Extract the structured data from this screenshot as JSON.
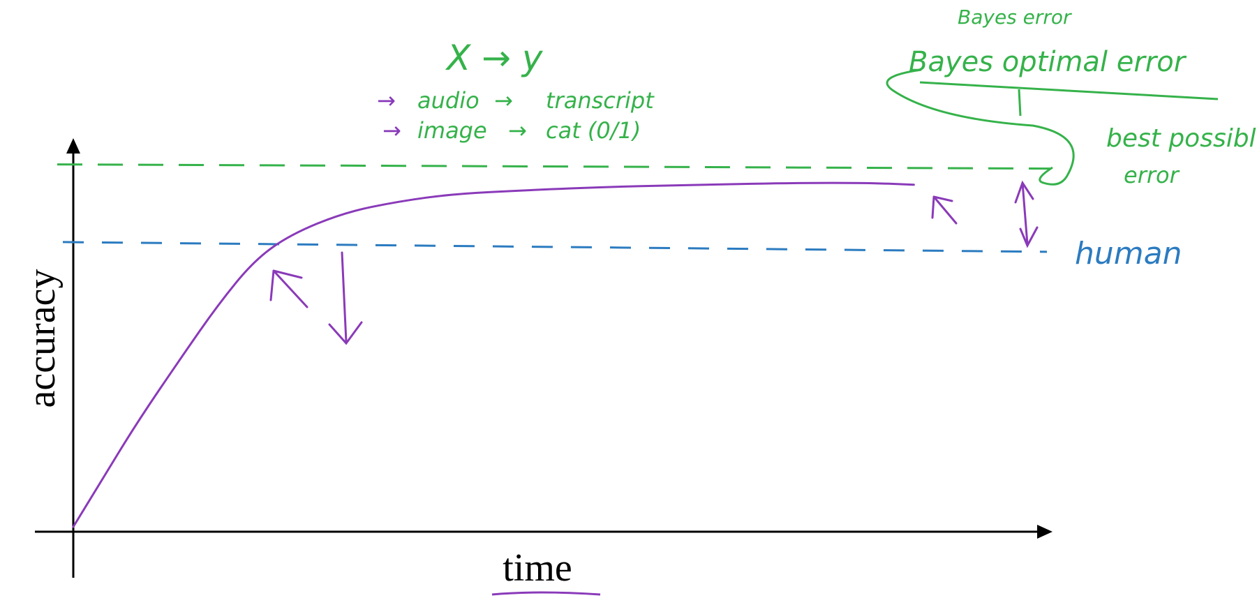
{
  "chart_data": {
    "type": "line",
    "title": "",
    "xlabel": "time",
    "ylabel": "accuracy",
    "grid": false,
    "legend": "none",
    "xlim": [
      0,
      100
    ],
    "ylim": [
      0,
      100
    ],
    "series": [
      {
        "name": "",
        "x": [
          0,
          3,
          7,
          12,
          16,
          20,
          24,
          30,
          36,
          42,
          50,
          60,
          70,
          80,
          88,
          93
        ],
        "y": [
          0,
          12,
          28,
          46,
          60,
          72,
          79,
          85,
          88,
          90,
          91,
          92,
          92.5,
          93,
          93,
          92.5
        ]
      }
    ],
    "reference_lines": [
      {
        "label": "human",
        "y": 77
      },
      {
        "label": "Bayes optimal error",
        "y": 98
      }
    ]
  },
  "annotations": {
    "xy": "X → y",
    "ex1_from": "audio",
    "ex1_to": "transcript",
    "ex2_from": "image",
    "ex2_to": "cat (0/1)",
    "bayes_small": "Bayes error",
    "bayes_main": "Bayes optimal error",
    "best1": "best possible",
    "best2": "error",
    "human": "human"
  },
  "colors": {
    "axis": "#000000",
    "curve": "#8a3ab9",
    "bayes": "#35b24a",
    "human": "#2b7bc0"
  }
}
